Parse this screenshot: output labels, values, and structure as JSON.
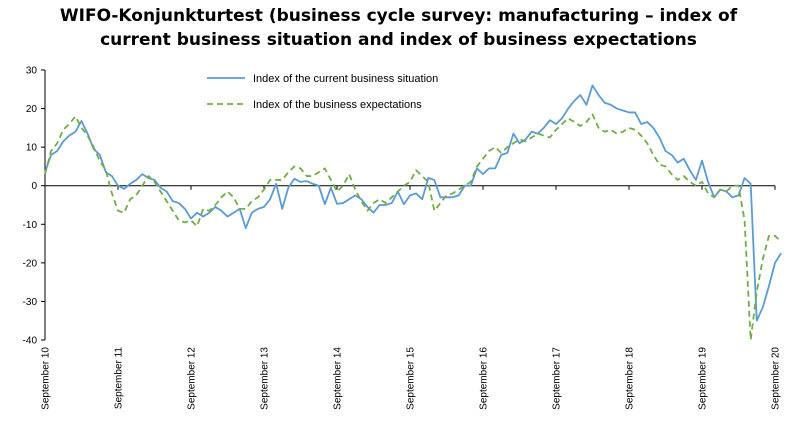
{
  "title_line1": "WIFO-Konjunkturtest (business cycle survey: manufacturing – index of",
  "title_line2": "current business situation and index of business expectations",
  "chart_data": {
    "type": "line",
    "title": "WIFO-Konjunkturtest (business cycle survey: manufacturing – index of current business situation and index of business expectations",
    "xlabel": "",
    "ylabel": "",
    "ylim": [
      -40,
      30
    ],
    "yticks": [
      -40,
      -30,
      -20,
      -10,
      0,
      10,
      20,
      30
    ],
    "xlim": [
      0,
      120
    ],
    "x_ticks": [
      {
        "x": 0,
        "label": "September 10"
      },
      {
        "x": 12,
        "label": "September 11"
      },
      {
        "x": 24,
        "label": "September 12"
      },
      {
        "x": 36,
        "label": "September 13"
      },
      {
        "x": 48,
        "label": "September 14"
      },
      {
        "x": 60,
        "label": "September 15"
      },
      {
        "x": 72,
        "label": "September 16"
      },
      {
        "x": 84,
        "label": "September 17"
      },
      {
        "x": 96,
        "label": "September 18"
      },
      {
        "x": 108,
        "label": "September 19"
      },
      {
        "x": 120,
        "label": "September 20"
      }
    ],
    "grid": false,
    "legend_position": "top-center",
    "series": [
      {
        "name": "Index of the current business situation",
        "color": "#5B9BD5",
        "style": "solid",
        "values": [
          3.5,
          8,
          9,
          11.5,
          13,
          14,
          16.8,
          13.5,
          9.5,
          8,
          3.5,
          2.5,
          0,
          -0.8,
          0.5,
          1.5,
          3,
          2,
          1.5,
          -0.5,
          -1.5,
          -4,
          -4.5,
          -6,
          -8.5,
          -7,
          -8,
          -7,
          -5.5,
          -6.5,
          -8,
          -7,
          -6,
          -11,
          -7,
          -6,
          -5.5,
          -3.5,
          0.5,
          -6,
          -0.5,
          1.8,
          1,
          1.2,
          0.5,
          0,
          -4.8,
          -0.5,
          -4.7,
          -4.5,
          -3.5,
          -2.5,
          -3.5,
          -5.5,
          -7,
          -5,
          -5,
          -4.5,
          -1.5,
          -4.8,
          -2.5,
          -2,
          -3.5,
          2,
          1.5,
          -3,
          -3,
          -3,
          -2.5,
          0,
          0,
          4.5,
          3,
          4.5,
          4.5,
          8,
          8.5,
          13.5,
          11,
          12,
          14,
          13.5,
          15,
          17,
          16,
          17.5,
          20,
          22,
          23.5,
          21,
          26,
          23.5,
          21.5,
          21,
          20,
          19.5,
          19,
          19,
          16,
          16.5,
          15,
          12.5,
          9,
          8,
          6,
          7,
          4,
          1.5,
          6.5,
          1,
          -3,
          -1,
          -1.5,
          -3,
          -2.5,
          2,
          0.5,
          -35,
          -31.5,
          -26,
          -20,
          -17.5
        ]
      },
      {
        "name": "Index of the business expectations",
        "color": "#70AD47",
        "style": "dashed",
        "values": [
          3,
          9,
          11,
          14.5,
          16,
          18,
          15,
          13,
          10,
          6.5,
          4,
          -2,
          -6.5,
          -7,
          -3.5,
          -2.5,
          0,
          2.5,
          1,
          -1.5,
          -4,
          -6.5,
          -9,
          -9.5,
          -9,
          -10.5,
          -6,
          -6.5,
          -5,
          -3,
          -1.5,
          -3,
          -6,
          -6,
          -4,
          -3,
          -1,
          1.5,
          1.5,
          1.5,
          3.5,
          5,
          4.5,
          2.5,
          2.5,
          3.5,
          4.5,
          1.5,
          -1.5,
          0,
          3,
          -1,
          -4,
          -6.5,
          -4.5,
          -3.5,
          -4.5,
          -3,
          -1.5,
          0,
          1,
          4,
          2.5,
          1,
          -6.5,
          -4.5,
          -2.5,
          -2,
          -1,
          0,
          1,
          5,
          7,
          9,
          10,
          8.5,
          10,
          11,
          12,
          11.5,
          12.5,
          13.5,
          13,
          12.5,
          14.5,
          16,
          17.5,
          16.5,
          15.5,
          16.5,
          18.5,
          15,
          14,
          14.5,
          13.5,
          14,
          15,
          14.5,
          13,
          11,
          8,
          5.5,
          5,
          3,
          1.5,
          2.5,
          1,
          0,
          1,
          -2,
          -3,
          -1,
          -1.5,
          0,
          0,
          -9,
          -40,
          -27.5,
          -19,
          -13,
          -13,
          -14.5
        ]
      }
    ]
  }
}
